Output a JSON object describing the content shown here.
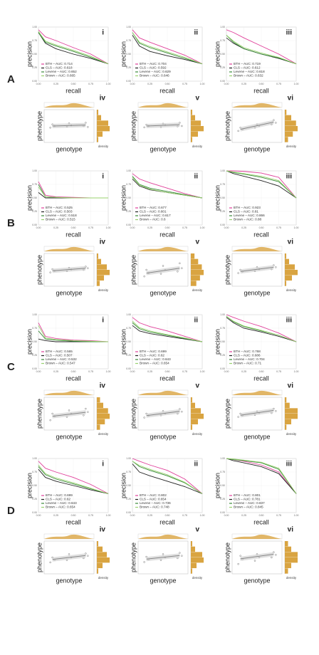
{
  "axis_labels": {
    "precision": "precision",
    "recall": "recall",
    "phenotype": "phenotype",
    "genotype": "genotype",
    "density": "density"
  },
  "methods": [
    {
      "color": "#e0409a"
    },
    {
      "color": "#222222"
    },
    {
      "color": "#3a8a3a"
    },
    {
      "color": "#98d26e"
    }
  ],
  "pr_x": [
    0,
    0.1,
    0.25,
    0.5,
    0.75,
    1
  ],
  "pr_lim": [
    0,
    1
  ],
  "pr_ticks": [
    {
      "value": 0,
      "label": "0.00"
    },
    {
      "value": 0.25,
      "label": "0.25"
    },
    {
      "value": 0.5,
      "label": "0.50"
    },
    {
      "value": 0.75,
      "label": "0.75"
    },
    {
      "value": 1,
      "label": "1.00"
    }
  ],
  "genotypes": [
    0,
    0,
    0,
    1,
    1,
    1,
    2,
    2,
    2
  ],
  "genotype_lim": [
    -0.5,
    2.5
  ],
  "phenotype_lim": [
    0,
    1
  ],
  "rows": [
    {
      "label": "A",
      "pr": [
        {
          "numeral": "i",
          "series": [
            {
              "legend": "BTH – AUC: 0.714",
              "values": [
                0.95,
                0.82,
                0.75,
                0.62,
                0.5,
                0.32
              ]
            },
            {
              "legend": "CLS – AUC: 0.618",
              "values": [
                0.9,
                0.7,
                0.6,
                0.5,
                0.42,
                0.32
              ]
            },
            {
              "legend": "Levene – AUC: 0.652",
              "values": [
                0.9,
                0.72,
                0.65,
                0.55,
                0.44,
                0.32
              ]
            },
            {
              "legend": "Brown – AUC: 0.665",
              "values": [
                0.92,
                0.74,
                0.67,
                0.57,
                0.46,
                0.32
              ]
            }
          ]
        },
        {
          "numeral": "ii",
          "series": [
            {
              "legend": "BTH – AUC: 0.704",
              "values": [
                0.95,
                0.8,
                0.72,
                0.6,
                0.48,
                0.32
              ]
            },
            {
              "legend": "CLS – AUC: 0.592",
              "values": [
                0.85,
                0.65,
                0.55,
                0.47,
                0.4,
                0.32
              ]
            },
            {
              "legend": "Levene – AUC: 0.629",
              "values": [
                0.9,
                0.7,
                0.62,
                0.52,
                0.42,
                0.32
              ]
            },
            {
              "legend": "Brown – AUC: 0.646",
              "values": [
                0.9,
                0.72,
                0.64,
                0.54,
                0.44,
                0.32
              ]
            }
          ]
        },
        {
          "numeral": "iii",
          "series": [
            {
              "legend": "BTH – AUC: 0.719",
              "values": [
                0.95,
                0.9,
                0.8,
                0.65,
                0.5,
                0.32
              ]
            },
            {
              "legend": "CLS – AUC: 0.612",
              "values": [
                0.8,
                0.7,
                0.6,
                0.5,
                0.42,
                0.32
              ]
            },
            {
              "legend": "Levene – AUC: 0.618",
              "values": [
                0.85,
                0.72,
                0.6,
                0.5,
                0.43,
                0.32
              ]
            },
            {
              "legend": "Brown – AUC: 0.632",
              "values": [
                0.85,
                0.74,
                0.62,
                0.52,
                0.44,
                0.32
              ]
            }
          ]
        }
      ],
      "scatter": [
        {
          "numeral": "iv",
          "points": [
            0.45,
            0.55,
            0.5,
            0.48,
            0.58,
            0.52,
            0.5,
            0.6,
            0.47
          ],
          "trend": [
            0.5,
            0.53
          ],
          "density": [
            1,
            3,
            8,
            9,
            4,
            1
          ]
        },
        {
          "numeral": "v",
          "points": [
            0.46,
            0.54,
            0.5,
            0.47,
            0.57,
            0.53,
            0.49,
            0.6,
            0.5
          ],
          "trend": [
            0.5,
            0.54
          ],
          "density": [
            1,
            3,
            7,
            9,
            5,
            1
          ]
        },
        {
          "numeral": "vi",
          "points": [
            0.35,
            0.45,
            0.4,
            0.45,
            0.55,
            0.5,
            0.55,
            0.68,
            0.6
          ],
          "trend": [
            0.4,
            0.62
          ],
          "density": [
            1,
            4,
            7,
            8,
            5,
            2
          ]
        }
      ]
    },
    {
      "label": "B",
      "pr": [
        {
          "numeral": "i",
          "series": [
            {
              "legend": "BTH – AUC: 0.525",
              "values": [
                0.8,
                0.55,
                0.52,
                0.51,
                0.5,
                0.5
              ]
            },
            {
              "legend": "CLS – AUC: 0.503",
              "values": [
                0.6,
                0.5,
                0.5,
                0.5,
                0.5,
                0.5
              ]
            },
            {
              "legend": "Levene – AUC: 0.518",
              "values": [
                0.75,
                0.52,
                0.51,
                0.5,
                0.5,
                0.5
              ]
            },
            {
              "legend": "Brown – AUC: 0.515",
              "values": [
                0.7,
                0.52,
                0.51,
                0.5,
                0.5,
                0.5
              ]
            }
          ]
        },
        {
          "numeral": "ii",
          "series": [
            {
              "legend": "BTH – AUC: 0.677",
              "values": [
                0.95,
                0.85,
                0.78,
                0.68,
                0.58,
                0.5
              ]
            },
            {
              "legend": "CLS – AUC: 0.601",
              "values": [
                0.85,
                0.72,
                0.65,
                0.6,
                0.55,
                0.5
              ]
            },
            {
              "legend": "Levene – AUC: 0.617",
              "values": [
                0.9,
                0.75,
                0.68,
                0.62,
                0.56,
                0.5
              ]
            },
            {
              "legend": "Brown – AUC: 0.6",
              "values": [
                0.88,
                0.74,
                0.66,
                0.6,
                0.55,
                0.5
              ]
            }
          ]
        },
        {
          "numeral": "iii",
          "series": [
            {
              "legend": "BTH – AUC: 0.923",
              "values": [
                1,
                1,
                0.99,
                0.96,
                0.88,
                0.5
              ]
            },
            {
              "legend": "CLS – AUC: 0.81",
              "values": [
                1,
                0.95,
                0.9,
                0.82,
                0.72,
                0.5
              ]
            },
            {
              "legend": "Levene – AUC: 0.866",
              "values": [
                1,
                0.97,
                0.94,
                0.88,
                0.8,
                0.5
              ]
            },
            {
              "legend": "Brown – AUC: 0.88",
              "values": [
                1,
                0.98,
                0.95,
                0.9,
                0.82,
                0.5
              ]
            }
          ]
        }
      ],
      "scatter": [
        {
          "numeral": "iv",
          "points": [
            0.42,
            0.52,
            0.47,
            0.46,
            0.56,
            0.51,
            0.5,
            0.6,
            0.55
          ],
          "trend": [
            0.47,
            0.55
          ],
          "density": [
            1,
            3,
            7,
            9,
            5,
            2
          ]
        },
        {
          "numeral": "v",
          "points": [
            0.3,
            0.5,
            0.4,
            0.38,
            0.62,
            0.5,
            0.45,
            0.7,
            0.55
          ],
          "trend": [
            0.4,
            0.55
          ],
          "density": [
            2,
            4,
            6,
            7,
            5,
            3
          ]
        },
        {
          "numeral": "vi",
          "points": [
            0.4,
            0.5,
            0.45,
            0.46,
            0.58,
            0.52,
            0.52,
            0.64,
            0.58
          ],
          "trend": [
            0.45,
            0.58
          ],
          "density": [
            1,
            3,
            7,
            9,
            5,
            1
          ]
        }
      ]
    },
    {
      "label": "C",
      "pr": [
        {
          "numeral": "i",
          "series": [
            {
              "legend": "BTH – AUC: 0.565",
              "values": [
                0.85,
                0.6,
                0.56,
                0.53,
                0.52,
                0.5
              ]
            },
            {
              "legend": "CLS – AUC: 0.507",
              "values": [
                0.55,
                0.52,
                0.5,
                0.5,
                0.5,
                0.5
              ]
            },
            {
              "legend": "Levene – AUC: 0.532",
              "values": [
                0.7,
                0.55,
                0.53,
                0.51,
                0.5,
                0.5
              ]
            },
            {
              "legend": "Brown – AUC: 0.547",
              "values": [
                0.8,
                0.57,
                0.54,
                0.52,
                0.51,
                0.5
              ]
            }
          ]
        },
        {
          "numeral": "ii",
          "series": [
            {
              "legend": "BTH – AUC: 0.699",
              "values": [
                0.95,
                0.85,
                0.78,
                0.7,
                0.6,
                0.5
              ]
            },
            {
              "legend": "CLS – AUC: 0.62",
              "values": [
                0.8,
                0.7,
                0.65,
                0.6,
                0.55,
                0.5
              ]
            },
            {
              "legend": "Levene – AUC: 0.643",
              "values": [
                0.85,
                0.74,
                0.68,
                0.62,
                0.56,
                0.5
              ]
            },
            {
              "legend": "Brown – AUC: 0.654",
              "values": [
                0.88,
                0.76,
                0.7,
                0.63,
                0.57,
                0.5
              ]
            }
          ]
        },
        {
          "numeral": "iii",
          "series": [
            {
              "legend": "BTH – AUC: 0.768",
              "values": [
                1,
                0.95,
                0.88,
                0.78,
                0.66,
                0.5
              ]
            },
            {
              "legend": "CLS – AUC: 0.686",
              "values": [
                0.95,
                0.85,
                0.75,
                0.68,
                0.6,
                0.5
              ]
            },
            {
              "legend": "Levene – AUC: 0.704",
              "values": [
                0.97,
                0.87,
                0.78,
                0.7,
                0.62,
                0.5
              ]
            },
            {
              "legend": "Brown – AUC: 0.71",
              "values": [
                0.97,
                0.88,
                0.79,
                0.71,
                0.62,
                0.5
              ]
            }
          ]
        }
      ],
      "scatter": [
        {
          "numeral": "iv",
          "points": [
            0.3,
            0.5,
            0.42,
            0.4,
            0.6,
            0.5,
            0.45,
            0.65,
            0.55
          ],
          "trend": [
            0.42,
            0.54
          ],
          "density": [
            2,
            4,
            7,
            8,
            5,
            2
          ]
        },
        {
          "numeral": "v",
          "points": [
            0.38,
            0.5,
            0.44,
            0.45,
            0.58,
            0.5,
            0.5,
            0.64,
            0.56
          ],
          "trend": [
            0.44,
            0.57
          ],
          "density": [
            1,
            3,
            7,
            9,
            5,
            1
          ]
        },
        {
          "numeral": "vi",
          "points": [
            0.4,
            0.5,
            0.45,
            0.46,
            0.57,
            0.52,
            0.52,
            0.65,
            0.58
          ],
          "trend": [
            0.45,
            0.6
          ],
          "density": [
            1,
            3,
            8,
            8,
            4,
            1
          ]
        }
      ]
    },
    {
      "label": "D",
      "pr": [
        {
          "numeral": "i",
          "series": [
            {
              "legend": "BTH – AUC: 0.699",
              "values": [
                0.95,
                0.82,
                0.75,
                0.65,
                0.52,
                0.35
              ]
            },
            {
              "legend": "CLS – AUC: 0.62",
              "values": [
                0.8,
                0.65,
                0.58,
                0.5,
                0.42,
                0.35
              ]
            },
            {
              "legend": "Levene – AUC: 0.643",
              "values": [
                0.85,
                0.7,
                0.62,
                0.53,
                0.44,
                0.35
              ]
            },
            {
              "legend": "Brown – AUC: 0.654",
              "values": [
                0.88,
                0.72,
                0.64,
                0.55,
                0.45,
                0.35
              ]
            }
          ]
        },
        {
          "numeral": "ii",
          "series": [
            {
              "legend": "BTH – AUC: 0.802",
              "values": [
                1,
                0.95,
                0.88,
                0.78,
                0.62,
                0.35
              ]
            },
            {
              "legend": "CLS – AUC: 0.654",
              "values": [
                0.9,
                0.75,
                0.68,
                0.58,
                0.48,
                0.35
              ]
            },
            {
              "legend": "Levene – AUC: 0.736",
              "values": [
                0.95,
                0.85,
                0.78,
                0.68,
                0.55,
                0.35
              ]
            },
            {
              "legend": "Brown – AUC: 0.748",
              "values": [
                0.95,
                0.87,
                0.8,
                0.7,
                0.56,
                0.35
              ]
            }
          ]
        },
        {
          "numeral": "iii",
          "series": [
            {
              "legend": "BTH – AUC: 0.801",
              "values": [
                1,
                0.98,
                0.95,
                0.88,
                0.75,
                0.35
              ]
            },
            {
              "legend": "CLS – AUC: 0.781",
              "values": [
                1,
                0.96,
                0.92,
                0.85,
                0.72,
                0.35
              ]
            },
            {
              "legend": "Levene – AUC: 0.837",
              "values": [
                1,
                0.98,
                0.96,
                0.92,
                0.8,
                0.35
              ]
            },
            {
              "legend": "Brown – AUC: 0.845",
              "values": [
                1,
                0.99,
                0.97,
                0.93,
                0.82,
                0.35
              ]
            }
          ]
        }
      ],
      "scatter": [
        {
          "numeral": "iv",
          "points": [
            0.35,
            0.5,
            0.42,
            0.42,
            0.6,
            0.5,
            0.48,
            0.62,
            0.55
          ],
          "trend": [
            0.44,
            0.56
          ],
          "density": [
            1,
            4,
            7,
            9,
            4,
            1
          ]
        },
        {
          "numeral": "v",
          "points": [
            0.36,
            0.52,
            0.44,
            0.42,
            0.6,
            0.5,
            0.48,
            0.64,
            0.55
          ],
          "trend": [
            0.45,
            0.56
          ],
          "density": [
            1,
            3,
            8,
            9,
            4,
            1
          ]
        },
        {
          "numeral": "vi",
          "points": [
            0.3,
            0.55,
            0.45,
            0.4,
            0.6,
            0.5,
            0.5,
            0.66,
            0.58
          ],
          "trend": [
            0.46,
            0.6
          ],
          "density": [
            2,
            4,
            8,
            8,
            4,
            2
          ]
        }
      ]
    }
  ]
}
